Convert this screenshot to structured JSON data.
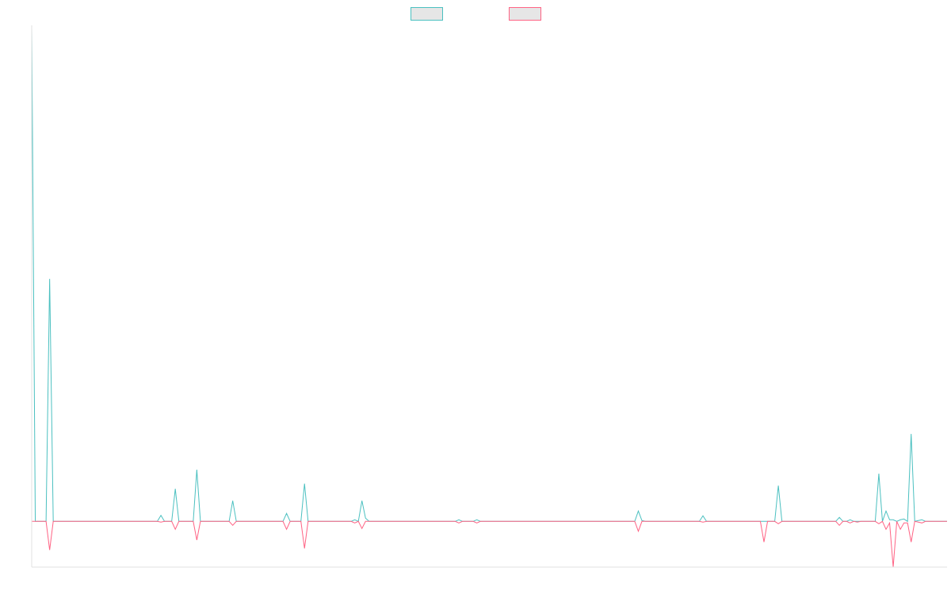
{
  "chart_data": {
    "type": "line",
    "title": "",
    "xlabel": "",
    "ylabel": "",
    "grid": false,
    "legend": "top-center",
    "x_count": 256,
    "ylim": [
      -1.15,
      12.4
    ],
    "colors": {
      "series_a": "#4bc0c0",
      "series_b": "#ff6384",
      "legend_fill": "#e6e6e6",
      "axis": "#e0e0e0"
    },
    "series": [
      {
        "name": "",
        "color": "#4bc0c0",
        "points": [
          [
            0,
            12.4
          ],
          [
            1,
            0
          ],
          [
            4,
            0
          ],
          [
            5,
            6.1
          ],
          [
            6,
            0
          ],
          [
            35,
            0
          ],
          [
            36,
            0.15
          ],
          [
            37,
            0
          ],
          [
            39,
            0
          ],
          [
            40,
            0.82
          ],
          [
            41,
            0
          ],
          [
            45,
            0
          ],
          [
            46,
            1.3
          ],
          [
            47,
            0
          ],
          [
            55,
            0
          ],
          [
            56,
            0.52
          ],
          [
            57,
            0
          ],
          [
            70,
            0
          ],
          [
            71,
            0.2
          ],
          [
            72,
            0
          ],
          [
            75,
            0
          ],
          [
            76,
            0.95
          ],
          [
            77,
            0
          ],
          [
            89,
            0
          ],
          [
            90,
            0.04
          ],
          [
            91,
            0
          ],
          [
            92,
            0.52
          ],
          [
            93,
            0.08
          ],
          [
            94,
            0
          ],
          [
            118,
            0
          ],
          [
            119,
            0.04
          ],
          [
            120,
            0
          ],
          [
            123,
            0
          ],
          [
            124,
            0.04
          ],
          [
            125,
            0
          ],
          [
            168,
            0
          ],
          [
            169,
            0.26
          ],
          [
            170,
            0.02
          ],
          [
            171,
            0
          ],
          [
            186,
            0
          ],
          [
            187,
            0.14
          ],
          [
            188,
            0
          ],
          [
            207,
            0
          ],
          [
            208,
            0.9
          ],
          [
            209,
            0
          ],
          [
            224,
            0
          ],
          [
            225,
            0.1
          ],
          [
            226,
            0
          ],
          [
            227,
            0
          ],
          [
            228,
            0.04
          ],
          [
            229,
            0
          ],
          [
            235,
            0
          ],
          [
            236,
            1.2
          ],
          [
            237,
            0
          ],
          [
            238,
            0.26
          ],
          [
            239,
            0.04
          ],
          [
            240,
            0.04
          ],
          [
            241,
            0
          ],
          [
            242,
            0.04
          ],
          [
            243,
            0.06
          ],
          [
            244,
            0
          ],
          [
            245,
            2.2
          ],
          [
            246,
            0
          ],
          [
            247,
            0.02
          ],
          [
            248,
            0.04
          ],
          [
            249,
            0
          ],
          [
            255,
            0
          ]
        ]
      },
      {
        "name": "",
        "color": "#ff6384",
        "points": [
          [
            0,
            0
          ],
          [
            4,
            0
          ],
          [
            5,
            -0.72
          ],
          [
            6,
            0
          ],
          [
            35,
            0
          ],
          [
            36,
            -0.02
          ],
          [
            37,
            0
          ],
          [
            39,
            0
          ],
          [
            40,
            -0.2
          ],
          [
            41,
            0
          ],
          [
            45,
            0
          ],
          [
            46,
            -0.47
          ],
          [
            47,
            0
          ],
          [
            55,
            0
          ],
          [
            56,
            -0.1
          ],
          [
            57,
            0
          ],
          [
            70,
            0
          ],
          [
            71,
            -0.2
          ],
          [
            72,
            0
          ],
          [
            75,
            0
          ],
          [
            76,
            -0.68
          ],
          [
            77,
            0
          ],
          [
            89,
            0
          ],
          [
            90,
            -0.04
          ],
          [
            91,
            0
          ],
          [
            92,
            -0.18
          ],
          [
            93,
            0
          ],
          [
            118,
            0
          ],
          [
            119,
            -0.04
          ],
          [
            120,
            0
          ],
          [
            123,
            0
          ],
          [
            124,
            -0.04
          ],
          [
            125,
            0
          ],
          [
            168,
            0
          ],
          [
            169,
            -0.25
          ],
          [
            170,
            0
          ],
          [
            186,
            0
          ],
          [
            187,
            -0.02
          ],
          [
            188,
            0
          ],
          [
            203,
            0
          ],
          [
            204,
            -0.52
          ],
          [
            205,
            0
          ],
          [
            207,
            0
          ],
          [
            208,
            -0.06
          ],
          [
            209,
            0
          ],
          [
            224,
            0
          ],
          [
            225,
            -0.1
          ],
          [
            226,
            0
          ],
          [
            227,
            0
          ],
          [
            228,
            -0.04
          ],
          [
            229,
            0
          ],
          [
            230,
            -0.02
          ],
          [
            231,
            0
          ],
          [
            235,
            0
          ],
          [
            236,
            -0.06
          ],
          [
            237,
            0
          ],
          [
            238,
            -0.2
          ],
          [
            239,
            -0.04
          ],
          [
            240,
            -1.15
          ],
          [
            241,
            0
          ],
          [
            242,
            -0.2
          ],
          [
            243,
            -0.04
          ],
          [
            244,
            -0.04
          ],
          [
            245,
            -0.52
          ],
          [
            246,
            0
          ],
          [
            247,
            -0.02
          ],
          [
            248,
            -0.04
          ],
          [
            249,
            0
          ],
          [
            255,
            0
          ]
        ]
      }
    ]
  }
}
